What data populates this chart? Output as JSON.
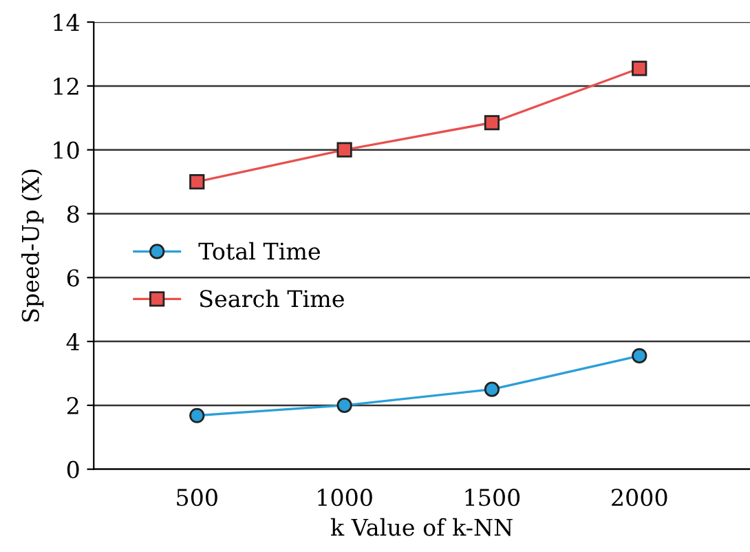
{
  "chart_data": {
    "type": "line",
    "xlabel": "k Value of k-NN",
    "ylabel": "Speed-Up (X)",
    "categories": [
      "500",
      "1000",
      "1500",
      "2000"
    ],
    "series": [
      {
        "name": "Total Time",
        "color": "#2a9fd8",
        "marker": "circle",
        "values": [
          1.68,
          2.0,
          2.5,
          3.55
        ]
      },
      {
        "name": "Search Time",
        "color": "#e8504e",
        "marker": "square",
        "values": [
          9.0,
          10.0,
          10.85,
          12.55
        ]
      }
    ],
    "ylim": [
      0,
      14
    ],
    "yticks": [
      0,
      2,
      4,
      6,
      8,
      10,
      12,
      14
    ],
    "grid": "y",
    "legend": "left"
  }
}
